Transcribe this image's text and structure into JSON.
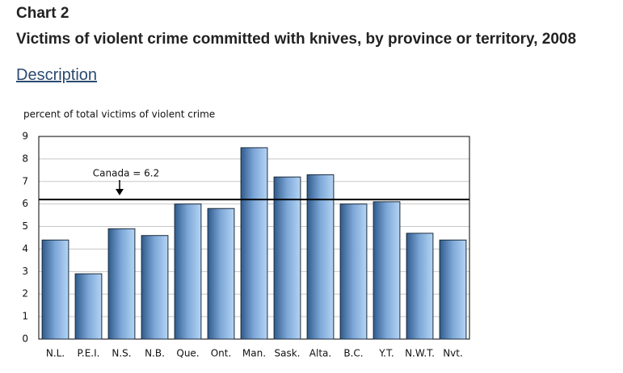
{
  "header": {
    "label": "Chart 2",
    "title": "Victims of violent crime committed with knives, by province or territory, 2008",
    "link": "Description"
  },
  "chart_data": {
    "type": "bar",
    "y_label": "percent of total victims of violent crime",
    "categories": [
      "N.L.",
      "P.E.I.",
      "N.S.",
      "N.B.",
      "Que.",
      "Ont.",
      "Man.",
      "Sask.",
      "Alta.",
      "B.C.",
      "Y.T.",
      "N.W.T.",
      "Nvt."
    ],
    "values": [
      4.4,
      2.9,
      4.9,
      4.6,
      6.0,
      5.8,
      8.5,
      7.2,
      7.3,
      6.0,
      6.1,
      4.7,
      4.4
    ],
    "color": "#7ea8d8",
    "ylim": [
      0,
      9
    ],
    "yticks": [
      0,
      1,
      2,
      3,
      4,
      5,
      6,
      7,
      8,
      9
    ],
    "grid": true,
    "reference_line": {
      "value": 6.2,
      "label": "Canada = 6.2"
    }
  }
}
